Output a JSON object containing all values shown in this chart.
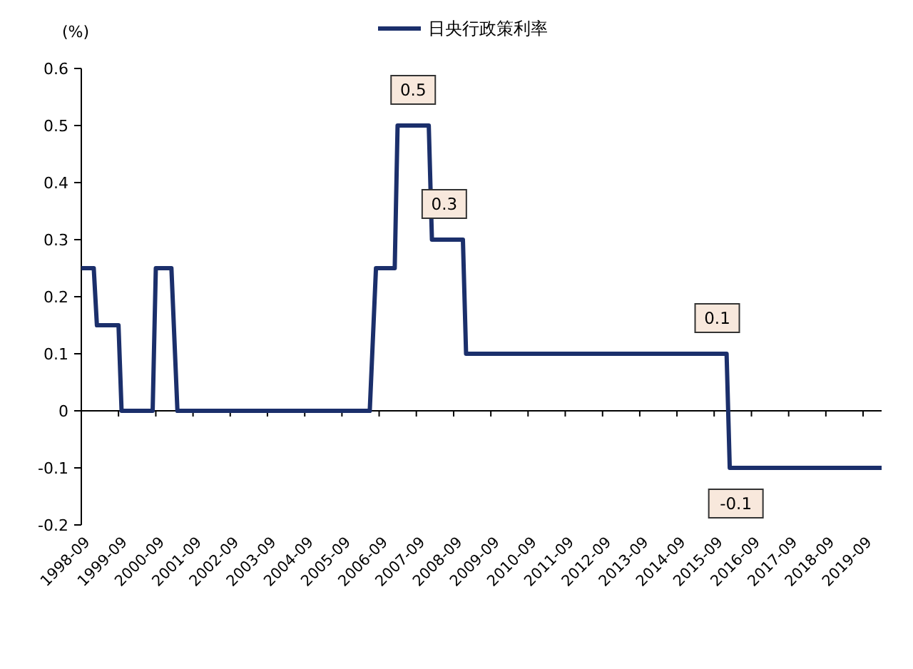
{
  "chart_data": {
    "type": "line",
    "ylabel": "(%)",
    "legend": "top",
    "x": [
      "1998-09",
      "1999-01",
      "1999-02",
      "1999-09",
      "1999-10",
      "2000-08",
      "2000-09",
      "2001-02",
      "2001-04",
      "2006-06",
      "2006-08",
      "2007-02",
      "2007-03",
      "2008-01",
      "2008-02",
      "2008-12",
      "2009-01",
      "2016-01",
      "2016-02",
      "2020-03"
    ],
    "series": [
      {
        "name": "日央行政策利率",
        "color": "#1b2f6b",
        "values": [
          0.25,
          0.25,
          0.15,
          0.15,
          0,
          0,
          0.25,
          0.25,
          0,
          0,
          0.25,
          0.25,
          0.5,
          0.5,
          0.3,
          0.3,
          0.1,
          0.1,
          -0.1,
          -0.1
        ]
      }
    ],
    "xlim": [
      "1998-09",
      "2020-03"
    ],
    "xticks": [
      "1998-09",
      "1999-09",
      "2000-09",
      "2001-09",
      "2002-09",
      "2003-09",
      "2004-09",
      "2005-09",
      "2006-09",
      "2007-09",
      "2008-09",
      "2009-09",
      "2010-09",
      "2011-09",
      "2012-09",
      "2013-09",
      "2014-09",
      "2015-09",
      "2016-09",
      "2017-09",
      "2018-09",
      "2019-09"
    ],
    "ylim": [
      -0.2,
      0.6
    ],
    "yticks": [
      -0.2,
      -0.1,
      0,
      0.1,
      0.2,
      0.3,
      0.4,
      0.5,
      0.6
    ],
    "annotations": [
      {
        "text": "0.5",
        "x": "2007-08",
        "y": 0.5
      },
      {
        "text": "0.3",
        "x": "2008-06",
        "y": 0.3
      },
      {
        "text": "0.1",
        "x": "2015-10",
        "y": 0.1
      },
      {
        "text": "-0.1",
        "x": "2016-04",
        "y": -0.1
      }
    ],
    "marker": "none",
    "line_style": "solid"
  }
}
